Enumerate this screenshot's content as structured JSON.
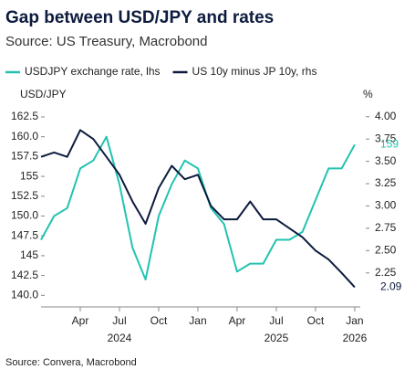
{
  "chart_data": {
    "type": "line",
    "title": "Gap between USD/JPY and rates",
    "subtitle": "Source: US Treasury, Macrobond",
    "source": "Source: Convera, Macrobond",
    "y_label": "USD/JPY",
    "y2_label": "%",
    "x": [
      "2024-01",
      "2024-02",
      "2024-03",
      "2024-04",
      "2024-05",
      "2024-06",
      "2024-07",
      "2024-08",
      "2024-09",
      "2024-10",
      "2024-11",
      "2024-12",
      "2025-01",
      "2025-02",
      "2025-03",
      "2025-04",
      "2025-05",
      "2025-06",
      "2025-07",
      "2025-08",
      "2025-09",
      "2025-10",
      "2025-11",
      "2025-12",
      "2026-01"
    ],
    "series": [
      {
        "name": "USDJPY exchange rate, lhs",
        "color": "#22c3b0",
        "values": [
          147,
          150,
          151,
          156,
          157,
          160,
          154,
          146,
          142,
          150,
          154,
          157,
          156,
          151,
          149,
          143,
          144,
          144,
          147,
          147,
          148,
          152,
          156,
          156,
          159
        ],
        "value_labels": [
          null,
          null,
          null,
          null,
          null,
          null,
          null,
          null,
          null,
          null,
          null,
          null,
          null,
          null,
          null,
          null,
          null,
          null,
          null,
          null,
          null,
          null,
          null,
          null,
          "159"
        ]
      },
      {
        "name": "US 10y minus JP 10y, rhs",
        "color": "#0d1b3e",
        "axis": "y2",
        "values": [
          3.55,
          3.6,
          3.55,
          3.85,
          3.75,
          3.55,
          3.35,
          3.05,
          2.8,
          3.2,
          3.45,
          3.3,
          3.35,
          3.0,
          2.85,
          2.85,
          3.05,
          2.85,
          2.85,
          2.75,
          2.65,
          2.5,
          2.4,
          2.25,
          2.09
        ],
        "value_labels": [
          null,
          null,
          null,
          null,
          null,
          null,
          null,
          null,
          null,
          null,
          null,
          null,
          null,
          null,
          null,
          null,
          null,
          null,
          null,
          null,
          null,
          null,
          null,
          null,
          "2.09"
        ]
      }
    ],
    "ylim": [
      139,
      163.65
    ],
    "yticks": [
      {
        "value": 140,
        "label": "140.0"
      },
      142.5,
      145,
      {
        "value": 147.5,
        "label": "147.5"
      },
      {
        "value": 150,
        "label": "150.0"
      },
      152.5,
      155,
      {
        "value": 157.5,
        "label": "157.5"
      },
      {
        "value": 160,
        "label": "160.0"
      },
      162.5
    ],
    "y2lim": [
      1.91,
      4.1
    ],
    "y2ticks": [
      2.25,
      {
        "value": 2.5,
        "label": "2.50"
      },
      2.75,
      {
        "value": 3,
        "label": "3.00"
      },
      3.25,
      {
        "value": 3.5,
        "label": "3.50"
      },
      3.75,
      {
        "value": 4,
        "label": "4.00"
      }
    ],
    "xticks": [
      {
        "value": "2024-04",
        "label": "Apr"
      },
      {
        "value": "2024-07",
        "label": "Jul"
      },
      {
        "value": "2024-10",
        "label": "Oct"
      },
      {
        "value": "2025-01",
        "label": "Jan"
      },
      {
        "value": "2025-04",
        "label": "Apr"
      },
      {
        "value": "2025-07",
        "label": "Jul"
      },
      {
        "value": "2025-10",
        "label": "Oct"
      },
      {
        "value": "2026-01",
        "label": "Jan"
      }
    ],
    "x_years": [
      {
        "value": "2024-07",
        "label": "2024"
      },
      {
        "value": "2025-07",
        "label": "2025"
      },
      {
        "value": "2026-01",
        "label": "2026"
      }
    ]
  }
}
